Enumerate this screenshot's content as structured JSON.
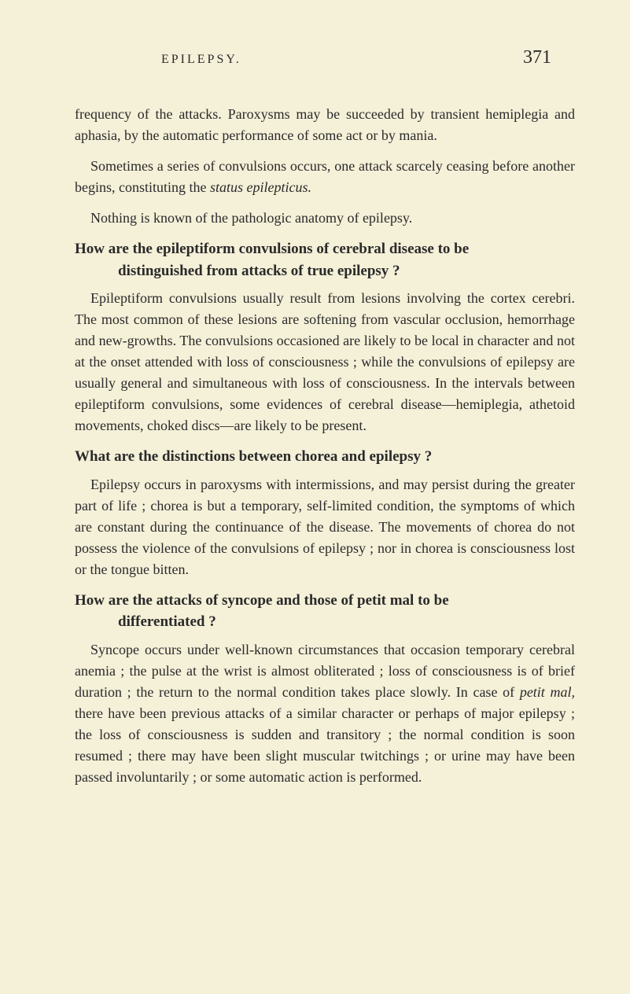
{
  "header": {
    "title": "EPILEPSY.",
    "page_number": "371"
  },
  "paragraphs": {
    "p1": "frequency of the attacks. Paroxysms may be succeeded by transient hemiplegia and aphasia, by the automatic performance of some act or by mania.",
    "p2_part1": "Sometimes a series of convulsions occurs, one attack scarcely ceasing before another begins, constituting the ",
    "p2_italic": "status epilepticus.",
    "p3": "Nothing is known of the pathologic anatomy of epilepsy.",
    "q1_line1": "How are the epileptiform convulsions of cerebral disease to be",
    "q1_line2": "distinguished from attacks of true epilepsy ?",
    "p4": "Epileptiform convulsions usually result from lesions involving the cortex cerebri. The most common of these lesions are softening from vascular occlusion, hemorrhage and new-growths. The convulsions occasioned are likely to be local in character and not at the onset attended with loss of consciousness ; while the convulsions of epilepsy are usually general and simultaneous with loss of consciousness. In the intervals between epileptiform convulsions, some evidences of cerebral disease—hemiplegia, athetoid movements, choked discs—are likely to be present.",
    "q2": "What are the distinctions between chorea and epilepsy ?",
    "p5": "Epilepsy occurs in paroxysms with intermissions, and may persist during the greater part of life ; chorea is but a temporary, self-limited condition, the symptoms of which are constant during the continuance of the disease. The movements of chorea do not possess the violence of the convulsions of epilepsy ; nor in chorea is consciousness lost or the tongue bitten.",
    "q3_line1": "How are the attacks of syncope and those of petit mal to be",
    "q3_line2": "differentiated ?",
    "p6_part1": "Syncope occurs under well-known circumstances that occasion temporary cerebral anemia ; the pulse at the wrist is almost obliterated ; loss of consciousness is of brief duration ; the return to the normal condition takes place slowly. In case of ",
    "p6_italic": "petit mal,",
    "p6_part2": " there have been previous attacks of a similar character or perhaps of major epilepsy ; the loss of consciousness is sudden and transitory ; the normal condition is soon resumed ; there may have been slight muscular twitchings ; or urine may have been passed involuntarily ; or some automatic action is performed."
  },
  "styling": {
    "background_color": "#f5f0d8",
    "text_color": "#2a2a2a",
    "body_fontsize": 18,
    "heading_fontsize": 19,
    "page_number_fontsize": 24,
    "header_fontsize": 16,
    "line_height": 1.5,
    "font_family": "Georgia, Times New Roman, serif"
  }
}
